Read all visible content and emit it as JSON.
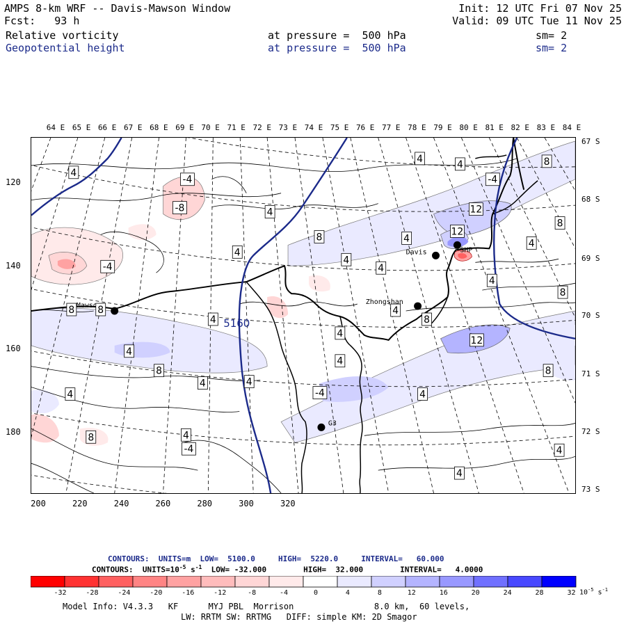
{
  "header": {
    "title": "AMPS 8-km WRF -- Davis-Mawson Window",
    "init": "Init: 12 UTC Fri 07 Nov 25",
    "fcst": "Fcst:   93 h",
    "valid": "Valid: 09 UTC Tue 11 Nov 25",
    "field1": {
      "name": "Relative vorticity",
      "level": "at pressure =  500 hPa",
      "sm": "sm= 2"
    },
    "field2": {
      "name": "Geopotential height",
      "level": "at pressure =  500 hPa",
      "sm": "sm= 2"
    }
  },
  "axes": {
    "top_longitudes": [
      "64 E",
      "65 E",
      "66 E",
      "67 E",
      "68 E",
      "69 E",
      "70 E",
      "71 E",
      "72 E",
      "73 E",
      "74 E",
      "75 E",
      "76 E",
      "77 E",
      "78 E",
      "79 E",
      "80 E",
      "81 E",
      "82 E",
      "83 E",
      "84 E"
    ],
    "right_latitudes": [
      "67 S",
      "68 S",
      "69 S",
      "70 S",
      "71 S",
      "72 S",
      "73 S"
    ],
    "left_grid": [
      "120",
      "140",
      "160",
      "180"
    ],
    "bottom_grid": [
      "200",
      "220",
      "240",
      "260",
      "280",
      "300",
      "320"
    ]
  },
  "stations": [
    {
      "name": "Mawson"
    },
    {
      "name": "Davis"
    },
    {
      "name": "Zhongshan"
    },
    {
      "name": "G3"
    },
    {
      "name": "SHP"
    }
  ],
  "height_contour_label": "5160",
  "vorticity_labels": [
    "4",
    "-4",
    "-8",
    "4",
    "4",
    "-4",
    "8",
    "4",
    "4",
    "8",
    "8",
    "4",
    "4",
    "-4",
    "12",
    "12",
    "4",
    "4",
    "8",
    "4",
    "4",
    "8",
    "4",
    "8",
    "4",
    "4",
    "4",
    "-4",
    "4",
    "4",
    "8",
    "-4",
    "4",
    "8",
    "8",
    "4",
    "12",
    "8",
    "4",
    "4",
    "4",
    "4"
  ],
  "legend": {
    "height_contours": {
      "label": "CONTOURS:  UNITS=m  LOW=  5100.0     HIGH=  5220.0     INTERVAL=   60.000",
      "color": "#1b2a8a"
    },
    "vorticity_contours": {
      "label_pre": "CONTOURS:  UNITS=10",
      "label_exp": "-5",
      "label_post": " s",
      "label_exp2": "-1",
      "label_rest": "  LOW= -32.000        HIGH=  32.000        INTERVAL=   4.0000"
    },
    "colorbar_ticks": [
      "-32",
      "-28",
      "-24",
      "-20",
      "-16",
      "-12",
      "-8",
      "-4",
      "0",
      "4",
      "8",
      "12",
      "16",
      "20",
      "24",
      "28",
      "32"
    ],
    "colorbar_unit": "10",
    "colorbar_unit_exp1": "-5",
    "colorbar_unit_mid": " s",
    "colorbar_unit_exp2": "-1",
    "colorbar_colors": [
      "#ff0000",
      "#ff3232",
      "#ff6060",
      "#ff8484",
      "#ffa2a2",
      "#ffbcbc",
      "#ffd6d6",
      "#ffeaea",
      "#ffffff",
      "#ffffff",
      "#eaeaff",
      "#d0d0ff",
      "#b4b4ff",
      "#9898ff",
      "#7070ff",
      "#4848ff",
      "#0000ff"
    ]
  },
  "footer": {
    "line1": "Model Info: V4.3.3   KF      MYJ PBL  Morrison                8.0 km,  60 levels,",
    "line2": "LW: RRTM SW: RRTMG   DIFF: simple KM: 2D Smagor"
  }
}
